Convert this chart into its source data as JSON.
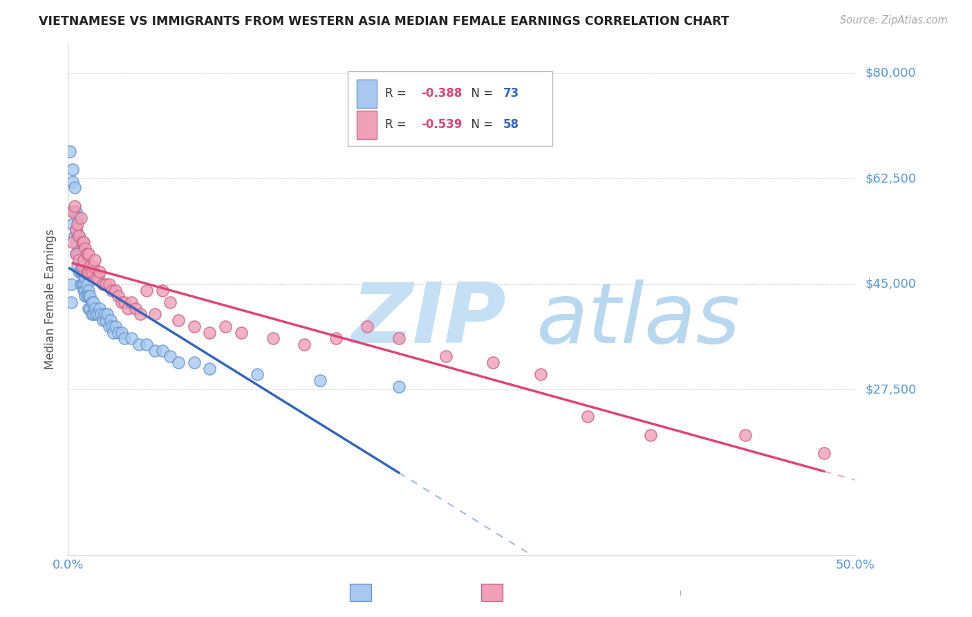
{
  "title": "VIETNAMESE VS IMMIGRANTS FROM WESTERN ASIA MEDIAN FEMALE EARNINGS CORRELATION CHART",
  "source": "Source: ZipAtlas.com",
  "ylabel": "Median Female Earnings",
  "xlim": [
    0.0,
    0.5
  ],
  "ylim": [
    0,
    85000
  ],
  "yticks": [
    27500,
    45000,
    62500,
    80000
  ],
  "ytick_labels": [
    "$27,500",
    "$45,000",
    "$62,500",
    "$80,000"
  ],
  "xtick_labels": [
    "0.0%",
    "50.0%"
  ],
  "background_color": "#ffffff",
  "grid_color": "#d0d0d0",
  "watermark_zip": "ZIP",
  "watermark_atlas": "atlas",
  "series": [
    {
      "name": "Vietnamese",
      "color": "#a8c8f0",
      "edge_color": "#6699cc",
      "R": -0.388,
      "N": 73,
      "line_color": "#3366bb",
      "x": [
        0.001,
        0.002,
        0.002,
        0.003,
        0.003,
        0.003,
        0.004,
        0.004,
        0.004,
        0.005,
        0.005,
        0.005,
        0.005,
        0.006,
        0.006,
        0.006,
        0.006,
        0.007,
        0.007,
        0.007,
        0.008,
        0.008,
        0.008,
        0.008,
        0.009,
        0.009,
        0.009,
        0.01,
        0.01,
        0.01,
        0.011,
        0.011,
        0.011,
        0.012,
        0.012,
        0.013,
        0.013,
        0.013,
        0.014,
        0.014,
        0.015,
        0.015,
        0.016,
        0.016,
        0.017,
        0.018,
        0.019,
        0.02,
        0.021,
        0.022,
        0.023,
        0.024,
        0.025,
        0.026,
        0.027,
        0.028,
        0.029,
        0.03,
        0.032,
        0.034,
        0.036,
        0.04,
        0.045,
        0.05,
        0.055,
        0.06,
        0.065,
        0.07,
        0.08,
        0.09,
        0.12,
        0.16,
        0.21
      ],
      "y": [
        67000,
        45000,
        42000,
        64000,
        62000,
        55000,
        61000,
        57000,
        53000,
        57000,
        54000,
        52000,
        50000,
        56000,
        53000,
        50000,
        48000,
        53000,
        50000,
        47000,
        51000,
        49000,
        47000,
        45000,
        48000,
        47000,
        45000,
        47000,
        45000,
        44000,
        46000,
        44000,
        43000,
        45000,
        43000,
        44000,
        43000,
        41000,
        43000,
        41000,
        42000,
        40000,
        42000,
        40000,
        41000,
        40000,
        40000,
        41000,
        40000,
        39000,
        40000,
        39000,
        40000,
        38000,
        39000,
        38000,
        37000,
        38000,
        37000,
        37000,
        36000,
        36000,
        35000,
        35000,
        34000,
        34000,
        33000,
        32000,
        32000,
        31000,
        30000,
        29000,
        28000
      ]
    },
    {
      "name": "Immigrants from Western Asia",
      "color": "#f0a0b8",
      "edge_color": "#cc6688",
      "R": -0.539,
      "N": 58,
      "line_color": "#dd4477",
      "x": [
        0.003,
        0.003,
        0.004,
        0.005,
        0.005,
        0.006,
        0.007,
        0.007,
        0.008,
        0.009,
        0.009,
        0.01,
        0.01,
        0.011,
        0.012,
        0.012,
        0.013,
        0.013,
        0.014,
        0.015,
        0.016,
        0.017,
        0.018,
        0.019,
        0.02,
        0.022,
        0.024,
        0.026,
        0.028,
        0.03,
        0.032,
        0.034,
        0.036,
        0.038,
        0.04,
        0.043,
        0.046,
        0.05,
        0.055,
        0.06,
        0.065,
        0.07,
        0.08,
        0.09,
        0.1,
        0.11,
        0.13,
        0.15,
        0.17,
        0.19,
        0.21,
        0.24,
        0.27,
        0.3,
        0.33,
        0.37,
        0.43,
        0.48
      ],
      "y": [
        57000,
        52000,
        58000,
        54000,
        50000,
        55000,
        53000,
        49000,
        56000,
        52000,
        48000,
        52000,
        49000,
        51000,
        50000,
        47000,
        50000,
        47000,
        48000,
        47000,
        48000,
        49000,
        46000,
        46000,
        47000,
        45000,
        45000,
        45000,
        44000,
        44000,
        43000,
        42000,
        42000,
        41000,
        42000,
        41000,
        40000,
        44000,
        40000,
        44000,
        42000,
        39000,
        38000,
        37000,
        38000,
        37000,
        36000,
        35000,
        36000,
        38000,
        36000,
        33000,
        32000,
        30000,
        23000,
        20000,
        20000,
        17000
      ]
    }
  ],
  "legend_box_color": "#ffffff",
  "title_color": "#222222",
  "axis_label_color": "#555555",
  "tick_label_color": "#5599dd",
  "r_text_color": "#dd4477",
  "n_text_color": "#3366bb",
  "watermark_zip_color": "#c5dff5",
  "watermark_atlas_color": "#b8d8f0",
  "source_color": "#aaaaaa"
}
